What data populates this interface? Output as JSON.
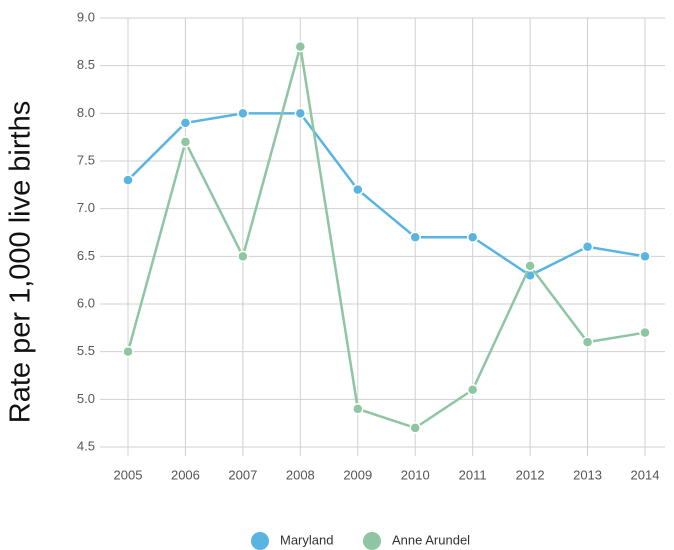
{
  "chart_data": {
    "type": "line",
    "y_label": "Rate per 1,000 live births",
    "categories": [
      "2005",
      "2006",
      "2007",
      "2008",
      "2009",
      "2010",
      "2011",
      "2012",
      "2013",
      "2014"
    ],
    "series": [
      {
        "name": "Maryland",
        "color": "#5ab4e2",
        "values": [
          7.3,
          7.9,
          8.0,
          8.0,
          7.2,
          6.7,
          6.7,
          6.3,
          6.6,
          6.5
        ]
      },
      {
        "name": "Anne Arundel",
        "color": "#8ec6a2",
        "values": [
          5.5,
          7.7,
          6.5,
          8.7,
          4.9,
          4.7,
          5.1,
          6.4,
          5.6,
          5.7
        ]
      }
    ],
    "ylim": [
      4.5,
      9.0
    ],
    "yticks": [
      4.5,
      {
        "value": 5,
        "label": "5.0"
      },
      5.5,
      {
        "value": 6,
        "label": "6.0"
      },
      6.5,
      {
        "value": 7,
        "label": "7.0"
      },
      7.5,
      {
        "value": 8,
        "label": "8.0"
      },
      8.5,
      {
        "value": 9,
        "label": "9.0"
      }
    ],
    "grid": true,
    "legend": "bottom"
  }
}
